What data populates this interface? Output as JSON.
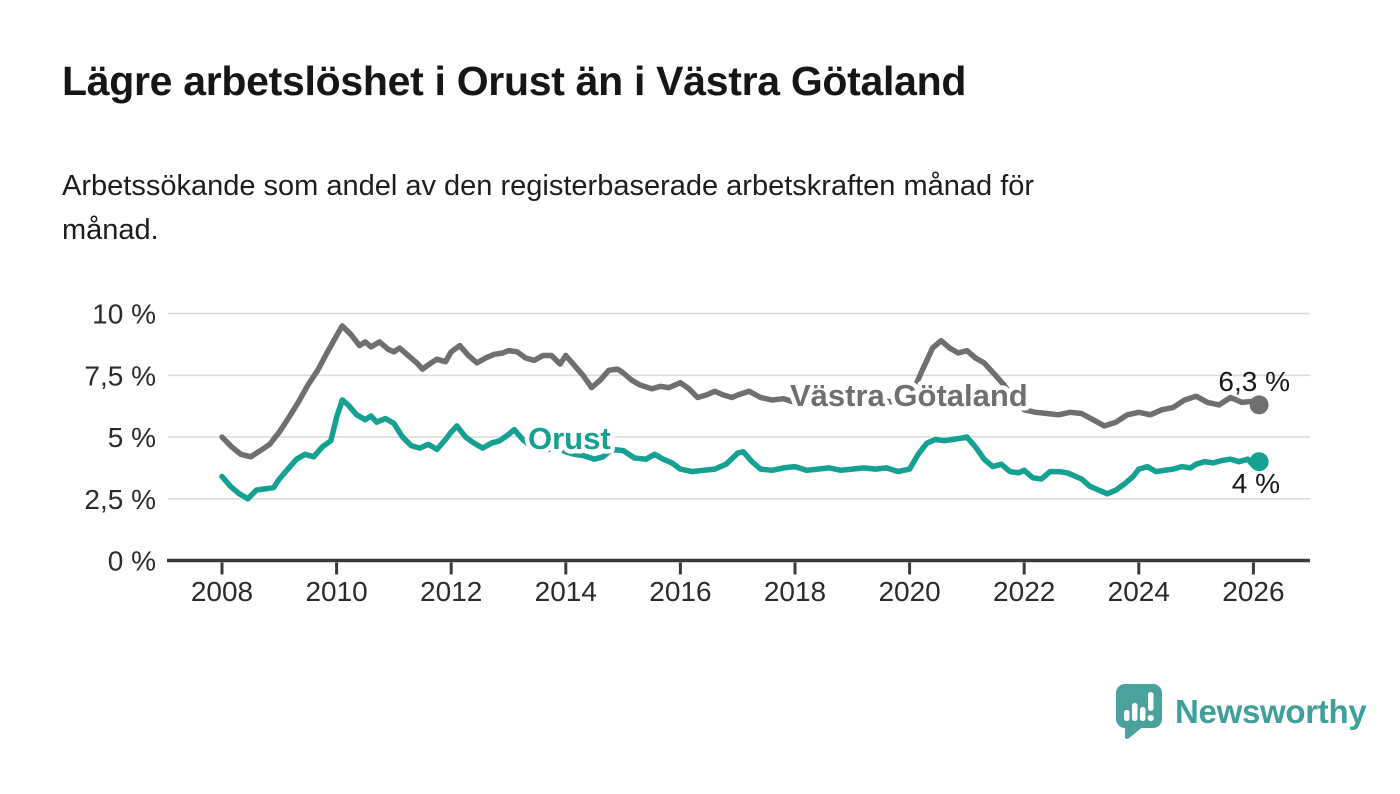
{
  "header": {
    "title": "Lägre arbetslöshet i Orust än i Västra Götaland",
    "subtitle_lines": [
      "Arbetssökande som andel av den registerbaserade arbetskraften månad för",
      "månad."
    ]
  },
  "chart_data": {
    "type": "line",
    "unit": "%",
    "grid": true,
    "legend_position": "inline-labels-on-lines",
    "x_axis": {
      "range": [
        2007.1,
        2027.0
      ],
      "ticks": [
        {
          "v": 2008,
          "label": "2008"
        },
        {
          "v": 2010,
          "label": "2010"
        },
        {
          "v": 2012,
          "label": "2012"
        },
        {
          "v": 2014,
          "label": "2014"
        },
        {
          "v": 2016,
          "label": "2016"
        },
        {
          "v": 2018,
          "label": "2018"
        },
        {
          "v": 2020,
          "label": "2020"
        },
        {
          "v": 2022,
          "label": "2022"
        },
        {
          "v": 2024,
          "label": "2024"
        },
        {
          "v": 2026,
          "label": "2026"
        }
      ]
    },
    "y_axis": {
      "range": [
        0,
        10
      ],
      "ticks": [
        {
          "v": 0,
          "label": "0 %"
        },
        {
          "v": 2.5,
          "label": "2,5 %"
        },
        {
          "v": 5,
          "label": "5 %"
        },
        {
          "v": 7.5,
          "label": "7,5 %"
        },
        {
          "v": 10,
          "label": "10 %"
        }
      ]
    },
    "series": [
      {
        "name": "Västra Götaland",
        "slug": "vastra-gotaland",
        "color": "#6f6f6f",
        "end_value_label": "6,3 %",
        "points": [
          [
            2008.0,
            5.0
          ],
          [
            2008.17,
            4.6
          ],
          [
            2008.33,
            4.3
          ],
          [
            2008.5,
            4.2
          ],
          [
            2008.67,
            4.45
          ],
          [
            2008.83,
            4.7
          ],
          [
            2009.0,
            5.2
          ],
          [
            2009.17,
            5.8
          ],
          [
            2009.33,
            6.4
          ],
          [
            2009.5,
            7.1
          ],
          [
            2009.67,
            7.7
          ],
          [
            2009.83,
            8.4
          ],
          [
            2010.0,
            9.1
          ],
          [
            2010.1,
            9.5
          ],
          [
            2010.25,
            9.15
          ],
          [
            2010.4,
            8.7
          ],
          [
            2010.5,
            8.85
          ],
          [
            2010.6,
            8.65
          ],
          [
            2010.75,
            8.85
          ],
          [
            2010.9,
            8.55
          ],
          [
            2011.0,
            8.45
          ],
          [
            2011.1,
            8.6
          ],
          [
            2011.25,
            8.3
          ],
          [
            2011.4,
            8.0
          ],
          [
            2011.5,
            7.75
          ],
          [
            2011.65,
            8.0
          ],
          [
            2011.75,
            8.15
          ],
          [
            2011.9,
            8.05
          ],
          [
            2012.0,
            8.45
          ],
          [
            2012.15,
            8.7
          ],
          [
            2012.3,
            8.3
          ],
          [
            2012.45,
            8.0
          ],
          [
            2012.6,
            8.2
          ],
          [
            2012.75,
            8.35
          ],
          [
            2012.9,
            8.4
          ],
          [
            2013.0,
            8.5
          ],
          [
            2013.15,
            8.45
          ],
          [
            2013.3,
            8.2
          ],
          [
            2013.45,
            8.1
          ],
          [
            2013.6,
            8.3
          ],
          [
            2013.75,
            8.3
          ],
          [
            2013.9,
            7.95
          ],
          [
            2014.0,
            8.3
          ],
          [
            2014.15,
            7.9
          ],
          [
            2014.3,
            7.5
          ],
          [
            2014.45,
            7.0
          ],
          [
            2014.6,
            7.3
          ],
          [
            2014.75,
            7.7
          ],
          [
            2014.9,
            7.75
          ],
          [
            2015.0,
            7.6
          ],
          [
            2015.15,
            7.3
          ],
          [
            2015.3,
            7.1
          ],
          [
            2015.5,
            6.95
          ],
          [
            2015.65,
            7.05
          ],
          [
            2015.8,
            7.0
          ],
          [
            2016.0,
            7.2
          ],
          [
            2016.15,
            6.95
          ],
          [
            2016.3,
            6.6
          ],
          [
            2016.45,
            6.7
          ],
          [
            2016.6,
            6.85
          ],
          [
            2016.75,
            6.7
          ],
          [
            2016.9,
            6.6
          ],
          [
            2017.0,
            6.7
          ],
          [
            2017.2,
            6.85
          ],
          [
            2017.4,
            6.6
          ],
          [
            2017.6,
            6.5
          ],
          [
            2017.8,
            6.55
          ],
          [
            2018.0,
            6.4
          ],
          [
            2018.2,
            6.45
          ],
          [
            2018.4,
            6.35
          ],
          [
            2018.6,
            6.3
          ],
          [
            2018.8,
            6.35
          ],
          [
            2019.0,
            6.4
          ],
          [
            2019.2,
            6.3
          ],
          [
            2019.4,
            6.35
          ],
          [
            2019.6,
            6.45
          ],
          [
            2019.8,
            6.4
          ],
          [
            2020.0,
            6.5
          ],
          [
            2020.2,
            7.6
          ],
          [
            2020.4,
            8.6
          ],
          [
            2020.55,
            8.9
          ],
          [
            2020.7,
            8.6
          ],
          [
            2020.85,
            8.4
          ],
          [
            2021.0,
            8.5
          ],
          [
            2021.15,
            8.2
          ],
          [
            2021.3,
            8.0
          ],
          [
            2021.5,
            7.5
          ],
          [
            2021.65,
            7.1
          ],
          [
            2021.8,
            6.6
          ],
          [
            2022.0,
            6.1
          ],
          [
            2022.2,
            6.0
          ],
          [
            2022.4,
            5.95
          ],
          [
            2022.6,
            5.9
          ],
          [
            2022.8,
            6.0
          ],
          [
            2023.0,
            5.95
          ],
          [
            2023.2,
            5.7
          ],
          [
            2023.4,
            5.45
          ],
          [
            2023.6,
            5.6
          ],
          [
            2023.8,
            5.9
          ],
          [
            2024.0,
            6.0
          ],
          [
            2024.2,
            5.9
          ],
          [
            2024.4,
            6.1
          ],
          [
            2024.6,
            6.2
          ],
          [
            2024.8,
            6.5
          ],
          [
            2025.0,
            6.65
          ],
          [
            2025.2,
            6.4
          ],
          [
            2025.4,
            6.3
          ],
          [
            2025.6,
            6.6
          ],
          [
            2025.8,
            6.4
          ],
          [
            2026.0,
            6.45
          ],
          [
            2026.1,
            6.3
          ]
        ]
      },
      {
        "name": "Orust",
        "slug": "orust",
        "color": "#14a093",
        "end_value_label": "4 %",
        "points": [
          [
            2008.0,
            3.4
          ],
          [
            2008.15,
            3.0
          ],
          [
            2008.3,
            2.7
          ],
          [
            2008.45,
            2.5
          ],
          [
            2008.6,
            2.85
          ],
          [
            2008.75,
            2.9
          ],
          [
            2008.9,
            2.95
          ],
          [
            2009.0,
            3.3
          ],
          [
            2009.15,
            3.7
          ],
          [
            2009.3,
            4.1
          ],
          [
            2009.45,
            4.3
          ],
          [
            2009.6,
            4.2
          ],
          [
            2009.75,
            4.6
          ],
          [
            2009.9,
            4.85
          ],
          [
            2010.0,
            5.8
          ],
          [
            2010.1,
            6.5
          ],
          [
            2010.2,
            6.3
          ],
          [
            2010.35,
            5.9
          ],
          [
            2010.5,
            5.7
          ],
          [
            2010.6,
            5.85
          ],
          [
            2010.7,
            5.6
          ],
          [
            2010.85,
            5.75
          ],
          [
            2011.0,
            5.55
          ],
          [
            2011.15,
            5.0
          ],
          [
            2011.3,
            4.65
          ],
          [
            2011.45,
            4.55
          ],
          [
            2011.6,
            4.7
          ],
          [
            2011.75,
            4.5
          ],
          [
            2011.9,
            4.9
          ],
          [
            2012.0,
            5.2
          ],
          [
            2012.1,
            5.45
          ],
          [
            2012.25,
            5.0
          ],
          [
            2012.4,
            4.75
          ],
          [
            2012.55,
            4.55
          ],
          [
            2012.7,
            4.75
          ],
          [
            2012.85,
            4.85
          ],
          [
            2013.0,
            5.1
          ],
          [
            2013.1,
            5.3
          ],
          [
            2013.25,
            4.9
          ],
          [
            2013.4,
            4.6
          ],
          [
            2013.55,
            4.45
          ],
          [
            2013.7,
            4.5
          ],
          [
            2013.85,
            4.55
          ],
          [
            2014.0,
            4.4
          ],
          [
            2014.15,
            4.3
          ],
          [
            2014.3,
            4.25
          ],
          [
            2014.5,
            4.1
          ],
          [
            2014.65,
            4.2
          ],
          [
            2014.8,
            4.5
          ],
          [
            2015.0,
            4.45
          ],
          [
            2015.2,
            4.15
          ],
          [
            2015.4,
            4.1
          ],
          [
            2015.55,
            4.3
          ],
          [
            2015.7,
            4.1
          ],
          [
            2015.85,
            3.95
          ],
          [
            2016.0,
            3.7
          ],
          [
            2016.2,
            3.6
          ],
          [
            2016.4,
            3.65
          ],
          [
            2016.6,
            3.7
          ],
          [
            2016.8,
            3.9
          ],
          [
            2017.0,
            4.35
          ],
          [
            2017.1,
            4.4
          ],
          [
            2017.25,
            4.0
          ],
          [
            2017.4,
            3.7
          ],
          [
            2017.6,
            3.65
          ],
          [
            2017.8,
            3.75
          ],
          [
            2018.0,
            3.8
          ],
          [
            2018.2,
            3.65
          ],
          [
            2018.4,
            3.7
          ],
          [
            2018.6,
            3.75
          ],
          [
            2018.8,
            3.65
          ],
          [
            2019.0,
            3.7
          ],
          [
            2019.2,
            3.75
          ],
          [
            2019.4,
            3.7
          ],
          [
            2019.6,
            3.75
          ],
          [
            2019.8,
            3.6
          ],
          [
            2020.0,
            3.7
          ],
          [
            2020.15,
            4.3
          ],
          [
            2020.3,
            4.75
          ],
          [
            2020.45,
            4.9
          ],
          [
            2020.6,
            4.85
          ],
          [
            2020.75,
            4.9
          ],
          [
            2020.9,
            4.95
          ],
          [
            2021.0,
            5.0
          ],
          [
            2021.15,
            4.6
          ],
          [
            2021.3,
            4.1
          ],
          [
            2021.45,
            3.8
          ],
          [
            2021.6,
            3.9
          ],
          [
            2021.75,
            3.6
          ],
          [
            2021.9,
            3.55
          ],
          [
            2022.0,
            3.65
          ],
          [
            2022.15,
            3.35
          ],
          [
            2022.3,
            3.3
          ],
          [
            2022.45,
            3.6
          ],
          [
            2022.6,
            3.6
          ],
          [
            2022.75,
            3.55
          ],
          [
            2022.9,
            3.4
          ],
          [
            2023.0,
            3.3
          ],
          [
            2023.15,
            3.0
          ],
          [
            2023.3,
            2.85
          ],
          [
            2023.45,
            2.7
          ],
          [
            2023.6,
            2.85
          ],
          [
            2023.75,
            3.1
          ],
          [
            2023.9,
            3.4
          ],
          [
            2024.0,
            3.7
          ],
          [
            2024.15,
            3.8
          ],
          [
            2024.3,
            3.6
          ],
          [
            2024.45,
            3.65
          ],
          [
            2024.6,
            3.7
          ],
          [
            2024.75,
            3.8
          ],
          [
            2024.9,
            3.75
          ],
          [
            2025.0,
            3.9
          ],
          [
            2025.15,
            4.0
          ],
          [
            2025.3,
            3.95
          ],
          [
            2025.45,
            4.05
          ],
          [
            2025.6,
            4.1
          ],
          [
            2025.75,
            4.0
          ],
          [
            2025.9,
            4.1
          ],
          [
            2026.0,
            3.85
          ],
          [
            2026.1,
            4.0
          ]
        ]
      }
    ]
  },
  "footer": {
    "brand": "Newsworthy",
    "logo_icon": "bar-chart-speech-bubble"
  },
  "colors": {
    "series_gray": "#6f6f6f",
    "series_teal": "#14a093",
    "gridline": "#dcdcdc",
    "axis": "#3b3b3b",
    "axis_text": "#2b2b2b",
    "value_text": "#191919",
    "brand_teal": "#4aa29e",
    "brand_word_teal": "#3f9f9a"
  }
}
